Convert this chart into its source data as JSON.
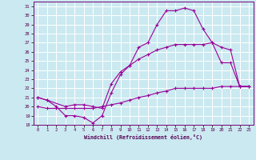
{
  "xlabel": "Windchill (Refroidissement éolien,°C)",
  "bg_color": "#cbe9f0",
  "grid_color": "#ffffff",
  "line_color": "#990099",
  "xlim": [
    -0.5,
    23.5
  ],
  "ylim": [
    18,
    31.5
  ],
  "yticks": [
    18,
    19,
    20,
    21,
    22,
    23,
    24,
    25,
    26,
    27,
    28,
    29,
    30,
    31
  ],
  "xticks": [
    0,
    1,
    2,
    3,
    4,
    5,
    6,
    7,
    8,
    9,
    10,
    11,
    12,
    13,
    14,
    15,
    16,
    17,
    18,
    19,
    20,
    21,
    22,
    23
  ],
  "line1_x": [
    0,
    1,
    2,
    3,
    4,
    5,
    6,
    7,
    8,
    9,
    10,
    11,
    12,
    13,
    14,
    15,
    16,
    17,
    18,
    19,
    20,
    21,
    22,
    23
  ],
  "line1_y": [
    21.0,
    20.7,
    20.0,
    19.0,
    19.0,
    18.8,
    18.2,
    19.0,
    21.5,
    23.5,
    24.5,
    26.5,
    27.0,
    29.0,
    30.5,
    30.5,
    30.8,
    30.5,
    28.5,
    27.0,
    24.8,
    24.8,
    22.2,
    22.2
  ],
  "line2_x": [
    0,
    1,
    3,
    4,
    5,
    6,
    7,
    8,
    9,
    10,
    11,
    12,
    13,
    14,
    15,
    16,
    17,
    18,
    19,
    20,
    21,
    22,
    23
  ],
  "line2_y": [
    21.0,
    20.7,
    20.0,
    20.2,
    20.2,
    20.0,
    19.8,
    22.5,
    23.8,
    24.5,
    25.2,
    25.7,
    26.2,
    26.5,
    26.8,
    26.8,
    26.8,
    26.8,
    27.0,
    26.5,
    26.2,
    22.2,
    22.2
  ],
  "line3_x": [
    0,
    1,
    2,
    3,
    4,
    5,
    6,
    7,
    8,
    9,
    10,
    11,
    12,
    13,
    14,
    15,
    16,
    17,
    18,
    19,
    20,
    21,
    22,
    23
  ],
  "line3_y": [
    20.0,
    19.8,
    19.8,
    19.8,
    19.8,
    19.8,
    19.8,
    20.0,
    20.2,
    20.4,
    20.7,
    21.0,
    21.2,
    21.5,
    21.7,
    22.0,
    22.0,
    22.0,
    22.0,
    22.0,
    22.2,
    22.2,
    22.2,
    22.2
  ]
}
